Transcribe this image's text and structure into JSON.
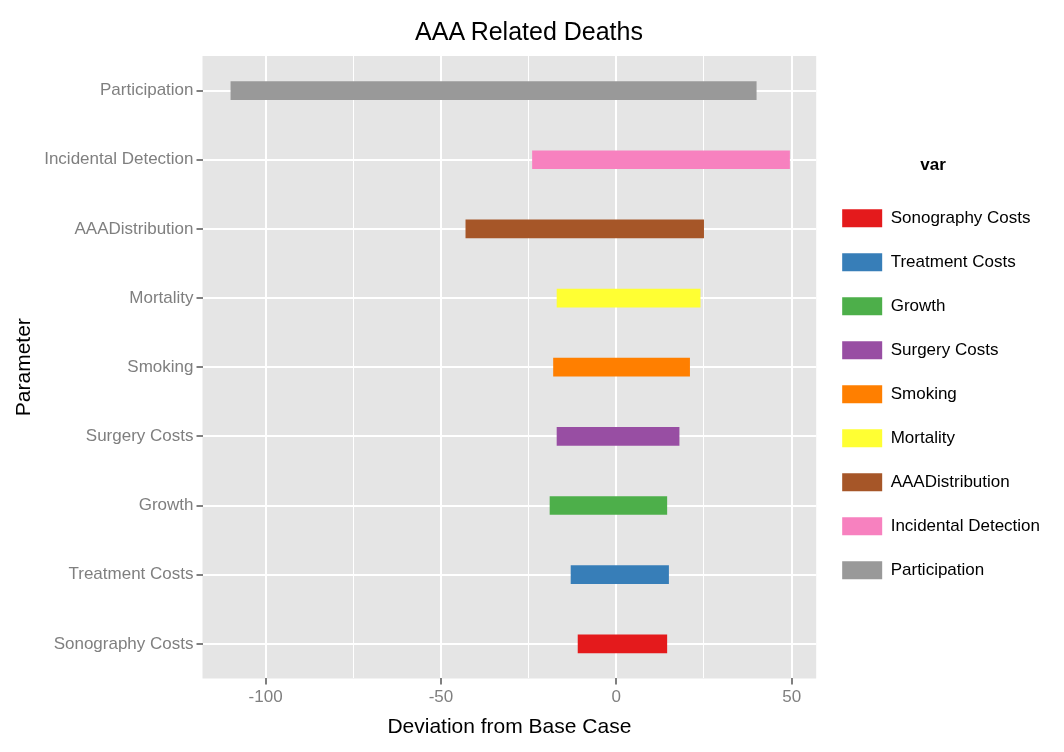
{
  "chart_data": {
    "type": "bar",
    "orientation": "horizontal",
    "title": "AAA Related Deaths",
    "xlabel": "Deviation from Base Case",
    "ylabel": "Parameter",
    "legend_title": "var",
    "legend": "right",
    "grid": true,
    "categories": [
      "Participation",
      "Incidental Detection",
      "AAADistribution",
      "Mortality",
      "Smoking",
      "Surgery Costs",
      "Growth",
      "Treatment Costs",
      "Sonography Costs"
    ],
    "series": [
      {
        "name": "Sonography Costs",
        "color": "#e41a1c",
        "base": [
          null,
          null,
          null,
          null,
          null,
          null,
          null,
          null,
          -11
        ],
        "values": [
          null,
          null,
          null,
          null,
          null,
          null,
          null,
          null,
          25.5
        ]
      },
      {
        "name": "Treatment Costs",
        "color": "#377eb8",
        "base": [
          null,
          null,
          null,
          null,
          null,
          null,
          null,
          -13,
          null
        ],
        "values": [
          null,
          null,
          null,
          null,
          null,
          null,
          null,
          28,
          null
        ]
      },
      {
        "name": "Growth",
        "color": "#4daf4a",
        "base": [
          null,
          null,
          null,
          null,
          null,
          null,
          -19,
          null,
          null
        ],
        "values": [
          null,
          null,
          null,
          null,
          null,
          null,
          33.5,
          null,
          null
        ]
      },
      {
        "name": "Surgery Costs",
        "color": "#984ea3",
        "base": [
          null,
          null,
          null,
          null,
          null,
          -17,
          null,
          null,
          null
        ],
        "values": [
          null,
          null,
          null,
          null,
          null,
          35,
          null,
          null,
          null
        ]
      },
      {
        "name": "Smoking",
        "color": "#ff7f00",
        "base": [
          null,
          null,
          null,
          null,
          -18,
          null,
          null,
          null,
          null
        ],
        "values": [
          null,
          null,
          null,
          null,
          39,
          null,
          null,
          null,
          null
        ]
      },
      {
        "name": "Mortality",
        "color": "#ffff33",
        "base": [
          null,
          null,
          null,
          -17,
          null,
          null,
          null,
          null,
          null
        ],
        "values": [
          null,
          null,
          null,
          41,
          null,
          null,
          null,
          null,
          null
        ]
      },
      {
        "name": "AAADistribution",
        "color": "#a65628",
        "base": [
          null,
          null,
          -43,
          null,
          null,
          null,
          null,
          null,
          null
        ],
        "values": [
          null,
          null,
          68,
          null,
          null,
          null,
          null,
          null,
          null
        ]
      },
      {
        "name": "Incidental Detection",
        "color": "#f781bf",
        "base": [
          null,
          -24,
          null,
          null,
          null,
          null,
          null,
          null,
          null
        ],
        "values": [
          null,
          73.5,
          null,
          null,
          null,
          null,
          null,
          null,
          null
        ]
      },
      {
        "name": "Participation",
        "color": "#999999",
        "base": [
          -110,
          null,
          null,
          null,
          null,
          null,
          null,
          null,
          null
        ],
        "values": [
          150,
          null,
          null,
          null,
          null,
          null,
          null,
          null,
          null
        ]
      }
    ],
    "xlim": [
      -118,
      57
    ],
    "xticks": [
      -100,
      {
        "value": -75,
        "label": null
      },
      -50,
      {
        "value": -25,
        "label": null
      },
      0,
      {
        "value": 25,
        "label": null
      },
      50
    ]
  }
}
